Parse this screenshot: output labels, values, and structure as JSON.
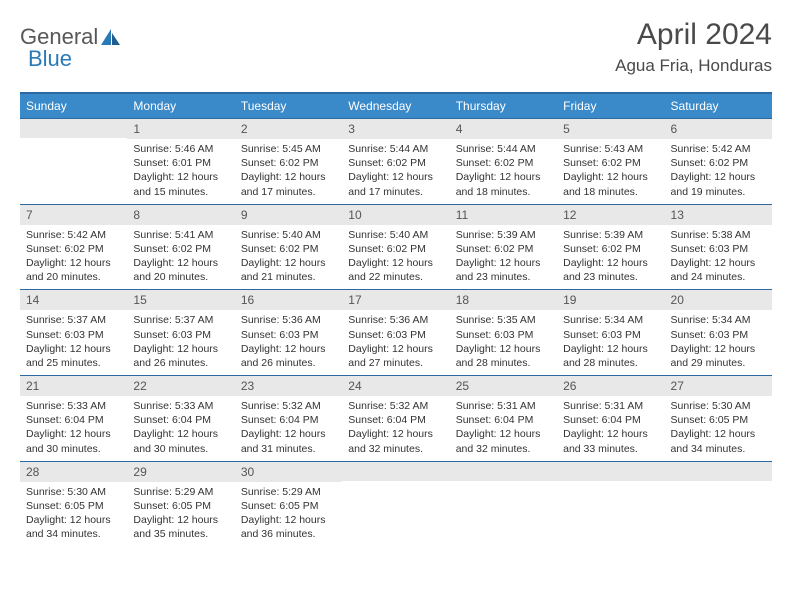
{
  "logo": {
    "word1": "General",
    "word2": "Blue"
  },
  "title": "April 2024",
  "location": "Agua Fria, Honduras",
  "colors": {
    "header_bg": "#3a89c9",
    "header_border": "#2a6aa0",
    "daynum_bg": "#e8e8e8",
    "text": "#333333",
    "logo_gray": "#58585a",
    "logo_blue": "#2a7ab8"
  },
  "dow": [
    "Sunday",
    "Monday",
    "Tuesday",
    "Wednesday",
    "Thursday",
    "Friday",
    "Saturday"
  ],
  "weeks": [
    [
      {
        "n": "",
        "sr": "",
        "ss": "",
        "dl": ""
      },
      {
        "n": "1",
        "sr": "Sunrise: 5:46 AM",
        "ss": "Sunset: 6:01 PM",
        "dl": "Daylight: 12 hours and 15 minutes."
      },
      {
        "n": "2",
        "sr": "Sunrise: 5:45 AM",
        "ss": "Sunset: 6:02 PM",
        "dl": "Daylight: 12 hours and 17 minutes."
      },
      {
        "n": "3",
        "sr": "Sunrise: 5:44 AM",
        "ss": "Sunset: 6:02 PM",
        "dl": "Daylight: 12 hours and 17 minutes."
      },
      {
        "n": "4",
        "sr": "Sunrise: 5:44 AM",
        "ss": "Sunset: 6:02 PM",
        "dl": "Daylight: 12 hours and 18 minutes."
      },
      {
        "n": "5",
        "sr": "Sunrise: 5:43 AM",
        "ss": "Sunset: 6:02 PM",
        "dl": "Daylight: 12 hours and 18 minutes."
      },
      {
        "n": "6",
        "sr": "Sunrise: 5:42 AM",
        "ss": "Sunset: 6:02 PM",
        "dl": "Daylight: 12 hours and 19 minutes."
      }
    ],
    [
      {
        "n": "7",
        "sr": "Sunrise: 5:42 AM",
        "ss": "Sunset: 6:02 PM",
        "dl": "Daylight: 12 hours and 20 minutes."
      },
      {
        "n": "8",
        "sr": "Sunrise: 5:41 AM",
        "ss": "Sunset: 6:02 PM",
        "dl": "Daylight: 12 hours and 20 minutes."
      },
      {
        "n": "9",
        "sr": "Sunrise: 5:40 AM",
        "ss": "Sunset: 6:02 PM",
        "dl": "Daylight: 12 hours and 21 minutes."
      },
      {
        "n": "10",
        "sr": "Sunrise: 5:40 AM",
        "ss": "Sunset: 6:02 PM",
        "dl": "Daylight: 12 hours and 22 minutes."
      },
      {
        "n": "11",
        "sr": "Sunrise: 5:39 AM",
        "ss": "Sunset: 6:02 PM",
        "dl": "Daylight: 12 hours and 23 minutes."
      },
      {
        "n": "12",
        "sr": "Sunrise: 5:39 AM",
        "ss": "Sunset: 6:02 PM",
        "dl": "Daylight: 12 hours and 23 minutes."
      },
      {
        "n": "13",
        "sr": "Sunrise: 5:38 AM",
        "ss": "Sunset: 6:03 PM",
        "dl": "Daylight: 12 hours and 24 minutes."
      }
    ],
    [
      {
        "n": "14",
        "sr": "Sunrise: 5:37 AM",
        "ss": "Sunset: 6:03 PM",
        "dl": "Daylight: 12 hours and 25 minutes."
      },
      {
        "n": "15",
        "sr": "Sunrise: 5:37 AM",
        "ss": "Sunset: 6:03 PM",
        "dl": "Daylight: 12 hours and 26 minutes."
      },
      {
        "n": "16",
        "sr": "Sunrise: 5:36 AM",
        "ss": "Sunset: 6:03 PM",
        "dl": "Daylight: 12 hours and 26 minutes."
      },
      {
        "n": "17",
        "sr": "Sunrise: 5:36 AM",
        "ss": "Sunset: 6:03 PM",
        "dl": "Daylight: 12 hours and 27 minutes."
      },
      {
        "n": "18",
        "sr": "Sunrise: 5:35 AM",
        "ss": "Sunset: 6:03 PM",
        "dl": "Daylight: 12 hours and 28 minutes."
      },
      {
        "n": "19",
        "sr": "Sunrise: 5:34 AM",
        "ss": "Sunset: 6:03 PM",
        "dl": "Daylight: 12 hours and 28 minutes."
      },
      {
        "n": "20",
        "sr": "Sunrise: 5:34 AM",
        "ss": "Sunset: 6:03 PM",
        "dl": "Daylight: 12 hours and 29 minutes."
      }
    ],
    [
      {
        "n": "21",
        "sr": "Sunrise: 5:33 AM",
        "ss": "Sunset: 6:04 PM",
        "dl": "Daylight: 12 hours and 30 minutes."
      },
      {
        "n": "22",
        "sr": "Sunrise: 5:33 AM",
        "ss": "Sunset: 6:04 PM",
        "dl": "Daylight: 12 hours and 30 minutes."
      },
      {
        "n": "23",
        "sr": "Sunrise: 5:32 AM",
        "ss": "Sunset: 6:04 PM",
        "dl": "Daylight: 12 hours and 31 minutes."
      },
      {
        "n": "24",
        "sr": "Sunrise: 5:32 AM",
        "ss": "Sunset: 6:04 PM",
        "dl": "Daylight: 12 hours and 32 minutes."
      },
      {
        "n": "25",
        "sr": "Sunrise: 5:31 AM",
        "ss": "Sunset: 6:04 PM",
        "dl": "Daylight: 12 hours and 32 minutes."
      },
      {
        "n": "26",
        "sr": "Sunrise: 5:31 AM",
        "ss": "Sunset: 6:04 PM",
        "dl": "Daylight: 12 hours and 33 minutes."
      },
      {
        "n": "27",
        "sr": "Sunrise: 5:30 AM",
        "ss": "Sunset: 6:05 PM",
        "dl": "Daylight: 12 hours and 34 minutes."
      }
    ],
    [
      {
        "n": "28",
        "sr": "Sunrise: 5:30 AM",
        "ss": "Sunset: 6:05 PM",
        "dl": "Daylight: 12 hours and 34 minutes."
      },
      {
        "n": "29",
        "sr": "Sunrise: 5:29 AM",
        "ss": "Sunset: 6:05 PM",
        "dl": "Daylight: 12 hours and 35 minutes."
      },
      {
        "n": "30",
        "sr": "Sunrise: 5:29 AM",
        "ss": "Sunset: 6:05 PM",
        "dl": "Daylight: 12 hours and 36 minutes."
      },
      {
        "n": "",
        "sr": "",
        "ss": "",
        "dl": ""
      },
      {
        "n": "",
        "sr": "",
        "ss": "",
        "dl": ""
      },
      {
        "n": "",
        "sr": "",
        "ss": "",
        "dl": ""
      },
      {
        "n": "",
        "sr": "",
        "ss": "",
        "dl": ""
      }
    ]
  ]
}
